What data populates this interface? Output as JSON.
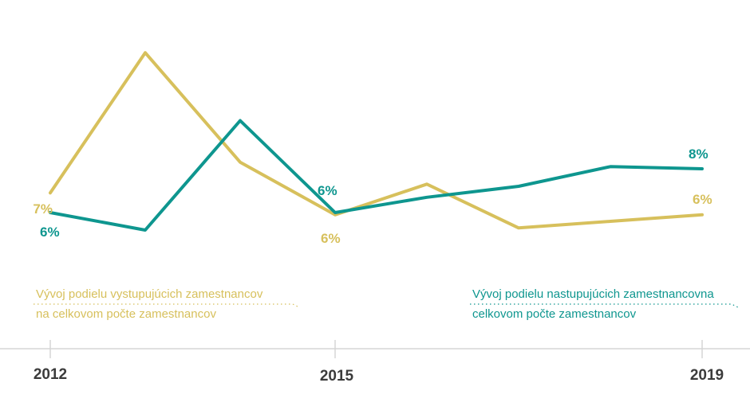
{
  "chart_data": {
    "type": "line",
    "title": "",
    "x": [
      2012,
      2013,
      2014,
      2015,
      2016,
      2017,
      2018,
      2019
    ],
    "x_axis_ticks": [
      "2012",
      "2015",
      "2019"
    ],
    "ylim": [
      4,
      14
    ],
    "y_unit": "%",
    "grid": false,
    "legend_position": "bottom-inline",
    "series": [
      {
        "name": "Vývoj podielu vystupujúcich zamestnancov na celkovom počte zamestnancov",
        "color": "#d7c05c",
        "values": [
          6.9,
          13.3,
          8.3,
          5.9,
          7.3,
          5.3,
          5.6,
          5.9
        ],
        "labeled_values": {
          "2012": "7%",
          "2015": "6%",
          "2019": "6%"
        }
      },
      {
        "name": "Vývoj podielu nastupujúcich zamestnancov na celkovom počte zamestnancov",
        "color": "#0e968f",
        "values": [
          6.0,
          5.2,
          10.2,
          6.0,
          6.7,
          7.2,
          8.1,
          8.0
        ],
        "labeled_values": {
          "2012": "6%",
          "2015": "6%",
          "2019": "8%"
        }
      }
    ]
  },
  "point_labels": {
    "out_2012": "7%",
    "in_2012": "6%",
    "in_2015": "6%",
    "out_2015": "6%",
    "in_2019": "8%",
    "out_2019": "6%"
  },
  "axis": {
    "tick_2012": "2012",
    "tick_2015": "2015",
    "tick_2019": "2019",
    "color": "#d6d6d6"
  },
  "legend": {
    "outgoing": {
      "line1": "Vývoj podielu vystupujúcich zamestnancov",
      "line2": "na celkovom počte zamestnancov"
    },
    "incoming": {
      "line1": "Vývoj podielu nastupujúcich zamestnancovna",
      "line2": "celkovom počte zamestnancov"
    }
  },
  "colors": {
    "outgoing_yellow": "#d7c05c",
    "incoming_teal": "#0e968f",
    "axis_gray": "#d6d6d6",
    "year_text": "#3b3b3b"
  }
}
